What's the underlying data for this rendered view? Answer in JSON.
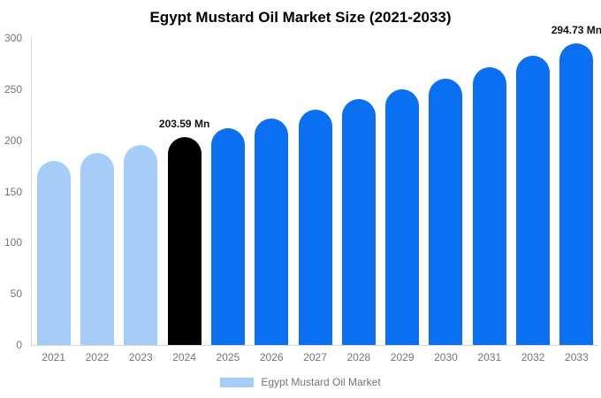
{
  "title": "Egypt Mustard Oil Market Size (2021-2033)",
  "legend": {
    "label": "Egypt Mustard Oil Market",
    "swatch_color": "#a6cdf7"
  },
  "colors": {
    "historical": "#a6cdf7",
    "base_year": "#000000",
    "forecast": "#0b6ff2",
    "axis_text": "#757575",
    "axis_line": "#d8d8d8",
    "annotation_text": "#111111"
  },
  "chart_data": {
    "type": "bar",
    "title": "Egypt Mustard Oil Market Size (2021-2033)",
    "xlabel": "",
    "ylabel": "",
    "categories": [
      "2021",
      "2022",
      "2023",
      "2024",
      "2025",
      "2026",
      "2027",
      "2028",
      "2029",
      "2030",
      "2031",
      "2032",
      "2033"
    ],
    "values": [
      180.0,
      187.5,
      195.4,
      203.59,
      212.1,
      221.0,
      230.3,
      240.0,
      250.0,
      260.5,
      271.5,
      282.9,
      294.73
    ],
    "bar_roles": [
      "historical",
      "historical",
      "historical",
      "base_year",
      "forecast",
      "forecast",
      "forecast",
      "forecast",
      "forecast",
      "forecast",
      "forecast",
      "forecast",
      "forecast"
    ],
    "annotations": [
      {
        "category": "2024",
        "text": "203.59 Mn"
      },
      {
        "category": "2033",
        "text": "294.73 Mn"
      }
    ],
    "ylim": [
      0,
      300
    ],
    "yticks": [
      0,
      50,
      100,
      150,
      200,
      250,
      300
    ],
    "grid": false,
    "legend_position": "bottom",
    "legend_entries": [
      "Egypt Mustard Oil Market"
    ]
  }
}
